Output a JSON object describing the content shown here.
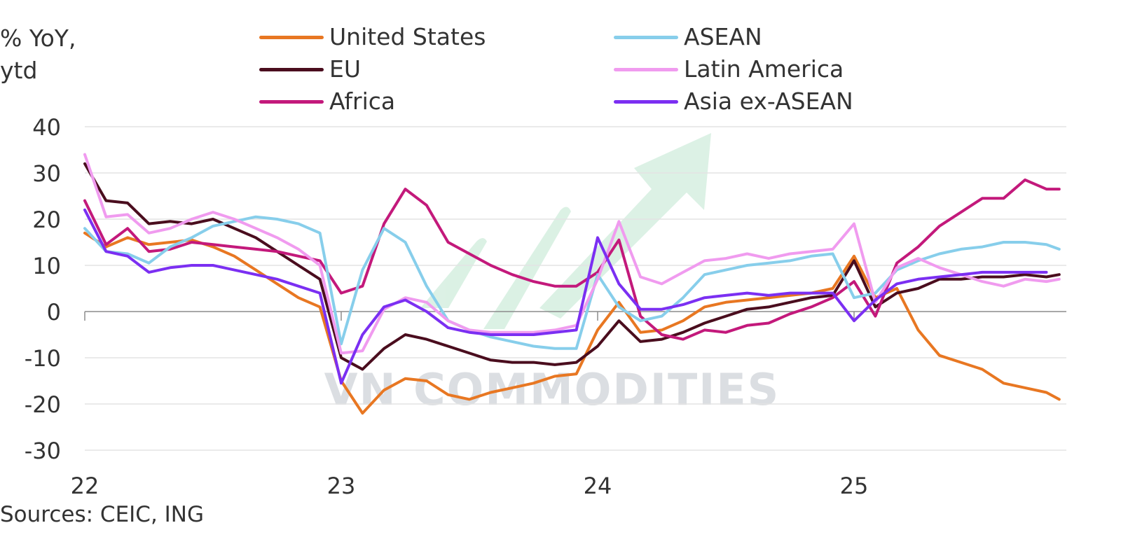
{
  "chart_data": {
    "type": "line",
    "title": "",
    "ylabel_lines": [
      "% YoY,",
      "ytd"
    ],
    "xlabel": "",
    "ylim": [
      -30,
      40
    ],
    "xlim": [
      22.0,
      25.8
    ],
    "yticks": [
      40,
      30,
      20,
      10,
      0,
      -10,
      -20,
      -30
    ],
    "ytick_labels": [
      "40",
      "30",
      "20",
      "10",
      "0",
      "-10",
      "-20",
      "-30"
    ],
    "xticks": [
      22,
      23,
      24,
      25
    ],
    "xtick_labels": [
      "22",
      "23",
      "24",
      "25"
    ],
    "grid": true,
    "legend_position": "top",
    "source": "Sources: CEIC, ING",
    "watermark": "VN COMMODITIES",
    "series": [
      {
        "name": "United States",
        "color": "#e87722",
        "x": [
          22.0,
          22.083,
          22.167,
          22.25,
          22.333,
          22.417,
          22.5,
          22.583,
          22.667,
          22.75,
          22.833,
          22.917,
          23.0,
          23.083,
          23.167,
          23.25,
          23.333,
          23.417,
          23.5,
          23.583,
          23.667,
          23.75,
          23.833,
          23.917,
          24.0,
          24.083,
          24.167,
          24.25,
          24.333,
          24.417,
          24.5,
          24.583,
          24.667,
          24.75,
          24.833,
          24.917,
          25.0,
          25.083,
          25.167,
          25.25,
          25.333,
          25.417,
          25.5,
          25.583,
          25.667,
          25.75,
          25.8
        ],
        "values": [
          17,
          14,
          16,
          14.5,
          15,
          15.5,
          14,
          12,
          9,
          6,
          3,
          1,
          -15,
          -22,
          -17,
          -14.5,
          -15,
          -18,
          -19,
          -17.5,
          -16.5,
          -15.5,
          -14,
          -13.5,
          -4,
          2,
          -4.5,
          -4,
          -2,
          1,
          2,
          2.5,
          3,
          3.5,
          4,
          5,
          12,
          3,
          5,
          -4,
          -9.5,
          -11,
          -12.5,
          -15.5,
          -16.5,
          -17.5,
          -19
        ]
      },
      {
        "name": "EU",
        "color": "#4a0d1e",
        "x": [
          22.0,
          22.083,
          22.167,
          22.25,
          22.333,
          22.417,
          22.5,
          22.583,
          22.667,
          22.75,
          22.833,
          22.917,
          23.0,
          23.083,
          23.167,
          23.25,
          23.333,
          23.417,
          23.5,
          23.583,
          23.667,
          23.75,
          23.833,
          23.917,
          24.0,
          24.083,
          24.167,
          24.25,
          24.333,
          24.417,
          24.5,
          24.583,
          24.667,
          24.75,
          24.833,
          24.917,
          25.0,
          25.083,
          25.167,
          25.25,
          25.333,
          25.417,
          25.5,
          25.583,
          25.667,
          25.75,
          25.8
        ],
        "values": [
          32,
          24,
          23.5,
          19,
          19.5,
          19,
          20,
          18,
          16,
          13,
          10,
          7,
          -10,
          -12.5,
          -8,
          -5,
          -6,
          -7.5,
          -9,
          -10.5,
          -11,
          -11,
          -11.5,
          -11,
          -7.5,
          -2,
          -6.5,
          -6,
          -4.5,
          -2.5,
          -1,
          0.5,
          1,
          2,
          3,
          3.5,
          11,
          1,
          4,
          5,
          7,
          7,
          7.5,
          7.5,
          8,
          7.5,
          8
        ]
      },
      {
        "name": "Africa",
        "color": "#c3197b",
        "x": [
          22.0,
          22.083,
          22.167,
          22.25,
          22.333,
          22.417,
          22.5,
          22.583,
          22.667,
          22.75,
          22.833,
          22.917,
          23.0,
          23.083,
          23.167,
          23.25,
          23.333,
          23.417,
          23.5,
          23.583,
          23.667,
          23.75,
          23.833,
          23.917,
          24.0,
          24.083,
          24.167,
          24.25,
          24.333,
          24.417,
          24.5,
          24.583,
          24.667,
          24.75,
          24.833,
          24.917,
          25.0,
          25.083,
          25.167,
          25.25,
          25.333,
          25.417,
          25.5,
          25.583,
          25.667,
          25.75,
          25.8
        ],
        "values": [
          24,
          14.5,
          18,
          13,
          13.5,
          15,
          14.5,
          14,
          13.5,
          13,
          12,
          11,
          4,
          5.5,
          19,
          26.5,
          23,
          15,
          12.5,
          10,
          8,
          6.5,
          5.5,
          5.5,
          8.5,
          15.5,
          -1,
          -5,
          -6,
          -4,
          -4.5,
          -3,
          -2.5,
          -0.5,
          1,
          3,
          6.5,
          -1,
          10.5,
          14,
          18.5,
          21.5,
          24.5,
          24.5,
          28.5,
          26.5,
          26.5
        ]
      },
      {
        "name": "ASEAN",
        "color": "#87ceeb",
        "x": [
          22.0,
          22.083,
          22.167,
          22.25,
          22.333,
          22.417,
          22.5,
          22.583,
          22.667,
          22.75,
          22.833,
          22.917,
          23.0,
          23.083,
          23.167,
          23.25,
          23.333,
          23.417,
          23.5,
          23.583,
          23.667,
          23.75,
          23.833,
          23.917,
          24.0,
          24.083,
          24.167,
          24.25,
          24.333,
          24.417,
          24.5,
          24.583,
          24.667,
          24.75,
          24.833,
          24.917,
          25.0,
          25.083,
          25.167,
          25.25,
          25.333,
          25.417,
          25.5,
          25.583,
          25.667,
          25.75,
          25.8
        ],
        "values": [
          18,
          13,
          12.5,
          10.5,
          14,
          16,
          18.5,
          19.5,
          20.5,
          20,
          19,
          17,
          -7,
          9,
          18,
          15,
          5.5,
          -2,
          -4,
          -5.5,
          -6.5,
          -7.5,
          -8,
          -8,
          8,
          1,
          -2,
          -1,
          3,
          8,
          9,
          10,
          10.5,
          11,
          12,
          12.5,
          3,
          4,
          9,
          11,
          12.5,
          13.5,
          14,
          15,
          15,
          14.5,
          13.5
        ]
      },
      {
        "name": "Latin America",
        "color": "#f09bef",
        "x": [
          22.0,
          22.083,
          22.167,
          22.25,
          22.333,
          22.417,
          22.5,
          22.583,
          22.667,
          22.75,
          22.833,
          22.917,
          23.0,
          23.083,
          23.167,
          23.25,
          23.333,
          23.417,
          23.5,
          23.583,
          23.667,
          23.75,
          23.833,
          23.917,
          24.0,
          24.083,
          24.167,
          24.25,
          24.333,
          24.417,
          24.5,
          24.583,
          24.667,
          24.75,
          24.833,
          24.917,
          25.0,
          25.083,
          25.167,
          25.25,
          25.333,
          25.417,
          25.5,
          25.583,
          25.667,
          25.75,
          25.8
        ],
        "values": [
          34,
          20.5,
          21,
          17,
          18,
          20,
          21.5,
          20,
          18,
          16,
          13.5,
          10,
          -9,
          -8.5,
          0.5,
          3,
          2,
          -2,
          -4,
          -4.5,
          -4.5,
          -4.5,
          -4,
          -3,
          7,
          19.5,
          7.5,
          6,
          8.5,
          11,
          11.5,
          12.5,
          11.5,
          12.5,
          13,
          13.5,
          19,
          2,
          9.5,
          11.5,
          9.5,
          8,
          6.5,
          5.5,
          7,
          6.5,
          7
        ]
      },
      {
        "name": "Asia ex-ASEAN",
        "color": "#7b2ff2",
        "x": [
          22.0,
          22.083,
          22.167,
          22.25,
          22.333,
          22.417,
          22.5,
          22.583,
          22.667,
          22.75,
          22.833,
          22.917,
          23.0,
          23.083,
          23.167,
          23.25,
          23.333,
          23.417,
          23.5,
          23.583,
          23.667,
          23.75,
          23.833,
          23.917,
          24.0,
          24.083,
          24.167,
          24.25,
          24.333,
          24.417,
          24.5,
          24.583,
          24.667,
          24.75,
          24.833,
          24.917,
          25.0,
          25.083,
          25.167,
          25.25,
          25.333,
          25.417,
          25.5,
          25.583,
          25.667,
          25.75
        ],
        "values": [
          22,
          13,
          12,
          8.5,
          9.5,
          10,
          10,
          9,
          8,
          7,
          5.5,
          4,
          -15.5,
          -5,
          1,
          2.5,
          0,
          -3.5,
          -4.5,
          -5,
          -5,
          -5,
          -4.5,
          -4,
          16,
          6,
          0.5,
          0.5,
          1.5,
          3,
          3.5,
          4,
          3.5,
          4,
          4,
          4,
          -2,
          2.5,
          6,
          7,
          7.5,
          8,
          8.5,
          8.5,
          8.5,
          8.5
        ]
      }
    ]
  }
}
